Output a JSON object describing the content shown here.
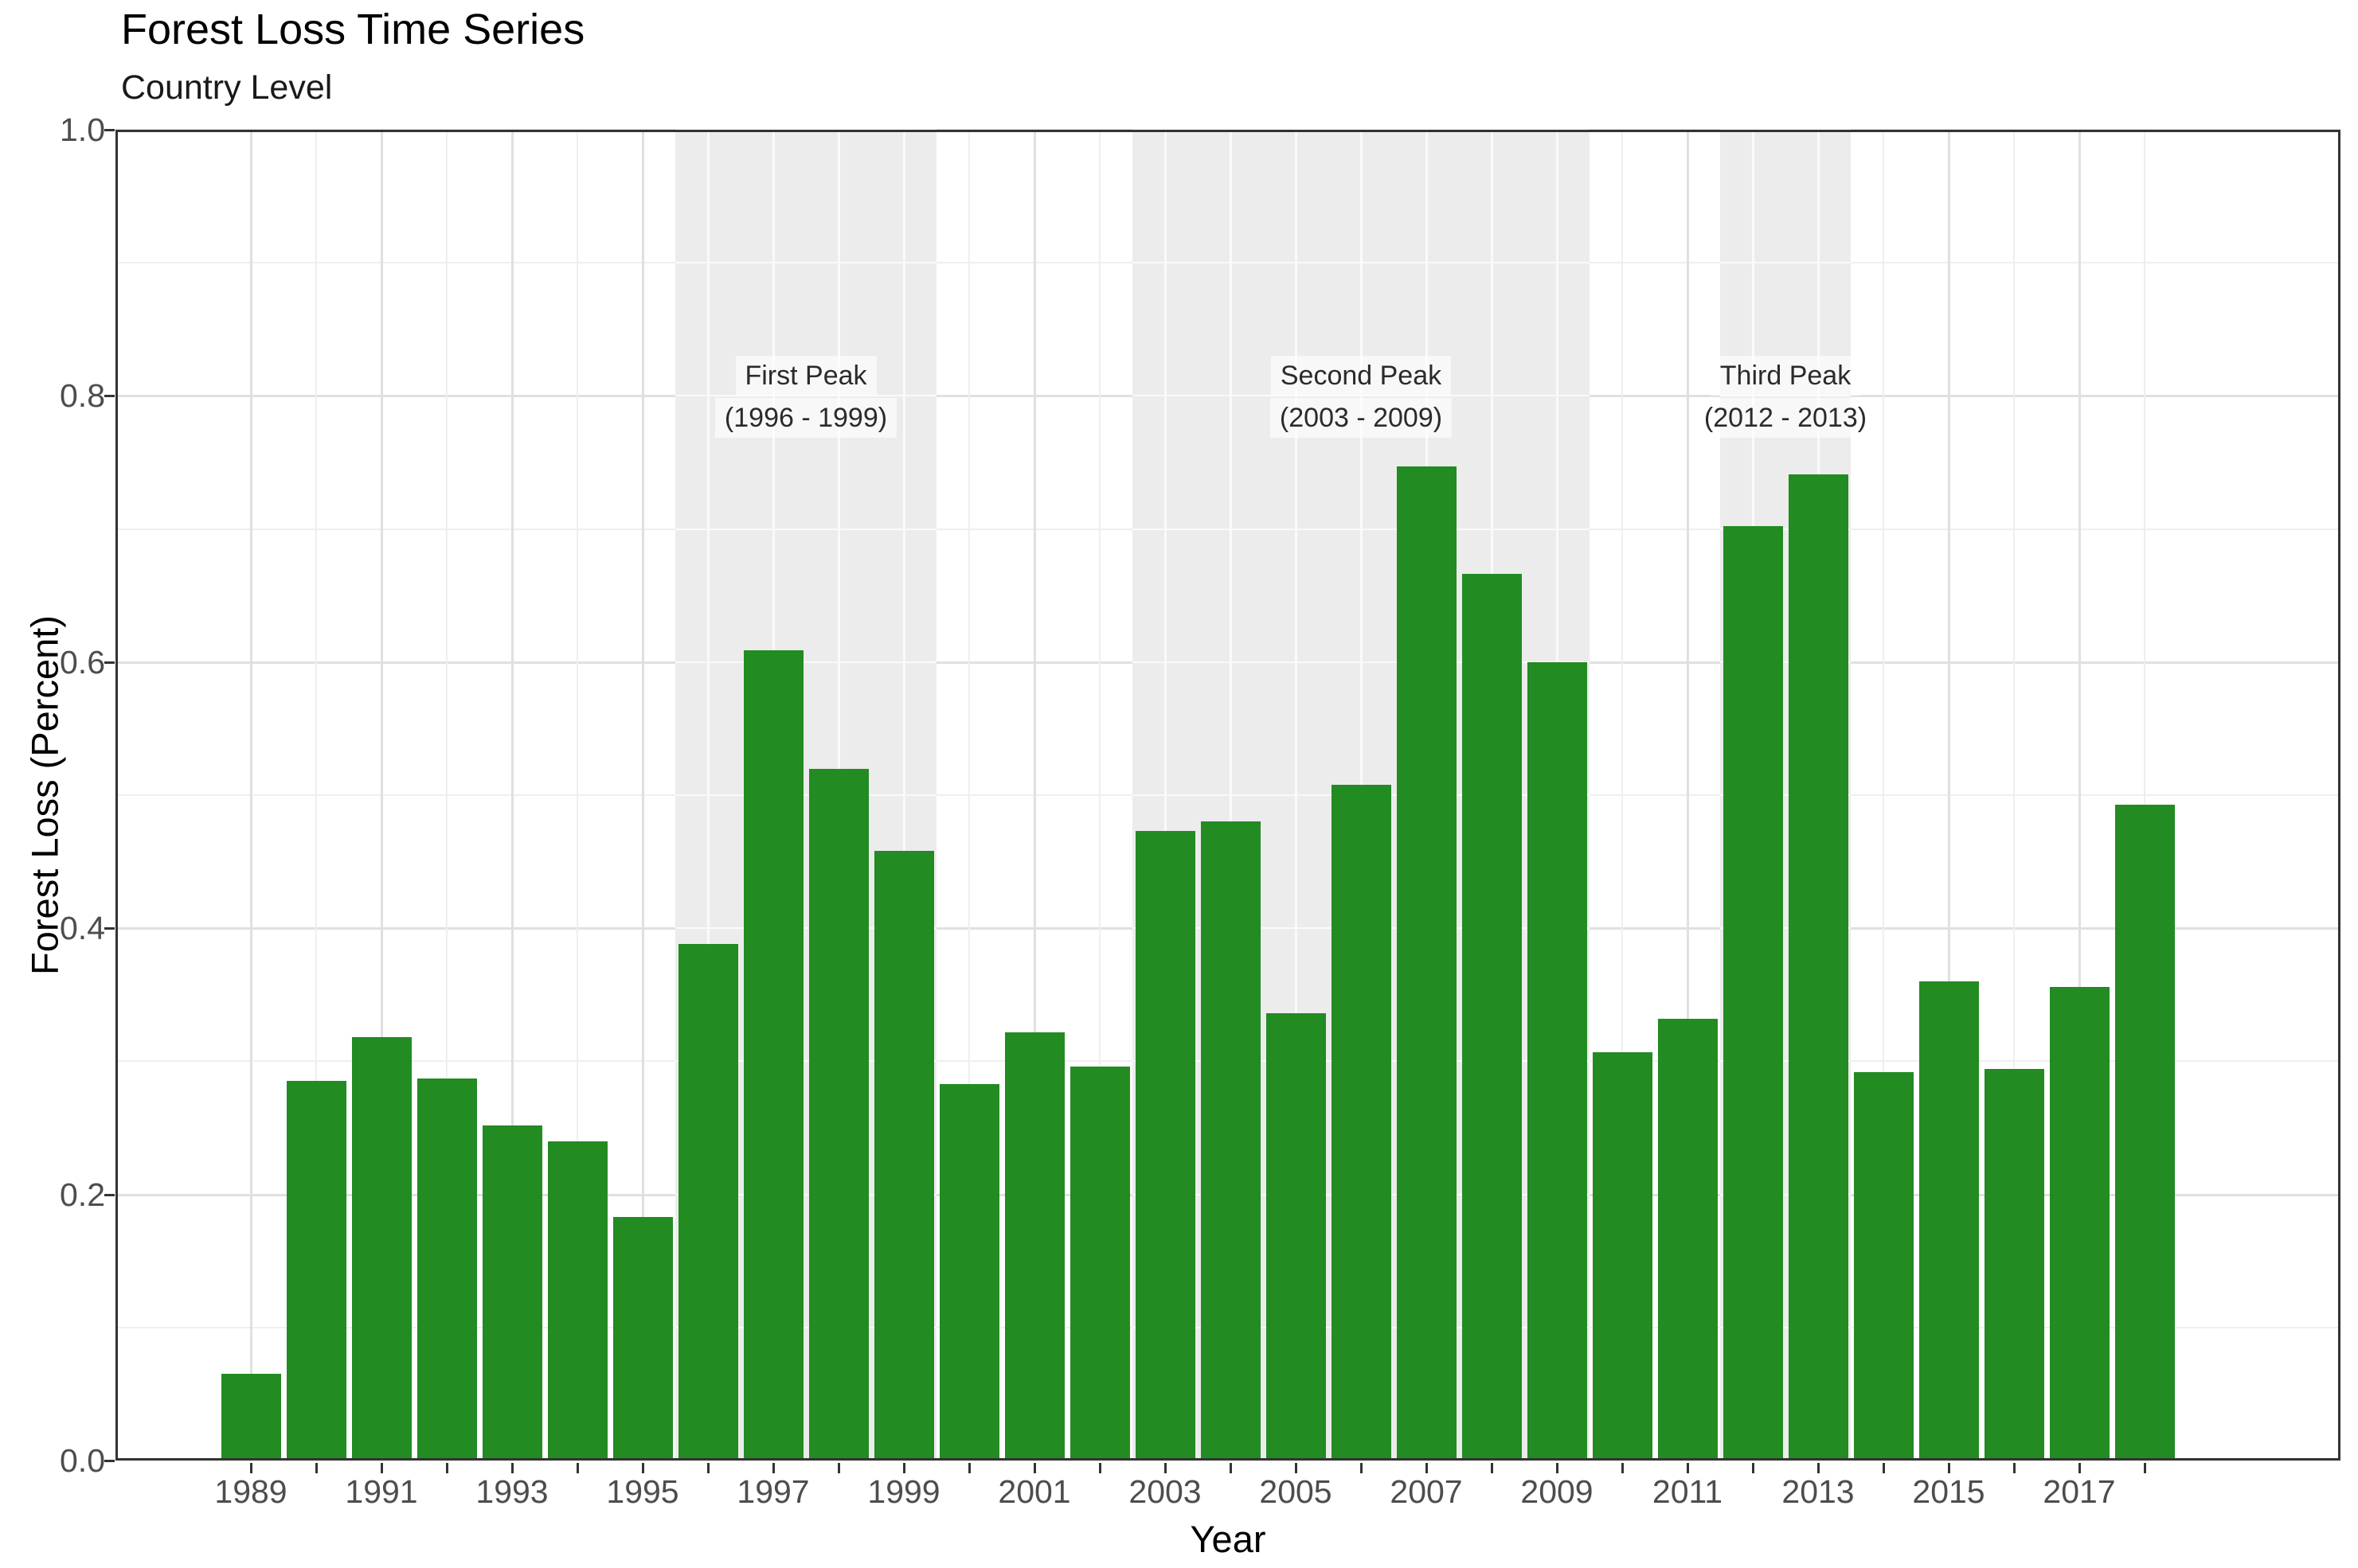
{
  "title": "Forest Loss Time Series",
  "subtitle": "Country Level",
  "x_axis": {
    "label": "Year",
    "tick_labels": [
      "1989",
      "1991",
      "1993",
      "1995",
      "1997",
      "1999",
      "2001",
      "2003",
      "2005",
      "2007",
      "2009",
      "2011",
      "2013",
      "2015",
      "2017"
    ]
  },
  "y_axis": {
    "label": "Forest Loss (Percent)",
    "tick_labels": [
      "0.0",
      "0.2",
      "0.4",
      "0.6",
      "0.8",
      "1.0"
    ]
  },
  "chart_data": {
    "type": "bar",
    "title": "Forest Loss Time Series",
    "subtitle": "Country Level",
    "xlabel": "Year",
    "ylabel": "Forest Loss (Percent)",
    "ylim": [
      0.0,
      1.0
    ],
    "y_major_step": 0.2,
    "y_minor_step": 0.1,
    "x_label_interval": 2,
    "grid": true,
    "legend": "none",
    "categories": [
      1989,
      1990,
      1991,
      1992,
      1993,
      1994,
      1995,
      1996,
      1997,
      1998,
      1999,
      2000,
      2001,
      2002,
      2003,
      2004,
      2005,
      2006,
      2007,
      2008,
      2009,
      2010,
      2011,
      2012,
      2013,
      2014,
      2015,
      2016,
      2017,
      2018
    ],
    "values": [
      0.065,
      0.285,
      0.318,
      0.287,
      0.252,
      0.24,
      0.183,
      0.388,
      0.609,
      0.52,
      0.458,
      0.283,
      0.322,
      0.296,
      0.473,
      0.48,
      0.336,
      0.508,
      0.747,
      0.666,
      0.6,
      0.307,
      0.332,
      0.702,
      0.741,
      0.292,
      0.36,
      0.294,
      0.356,
      0.493
    ],
    "annotations": [
      {
        "lines": [
          "First Peak",
          "(1996 - 1999)"
        ],
        "start_year": 1996,
        "end_year": 1999
      },
      {
        "lines": [
          "Second Peak",
          "(2003 - 2009)"
        ],
        "start_year": 2003,
        "end_year": 2009
      },
      {
        "lines": [
          "Third Peak",
          "(2012 - 2013)"
        ],
        "start_year": 2012,
        "end_year": 2013
      }
    ]
  },
  "colors": {
    "bar": "#228B22",
    "band": "#ECECEC",
    "band_gridline": "#FAFAFA",
    "grid_major": "#E0E0E0",
    "grid_minor": "#EFEFEF",
    "panel_border": "#333333",
    "tick_label": "#4D4D4D",
    "axis_title": "#000000"
  }
}
